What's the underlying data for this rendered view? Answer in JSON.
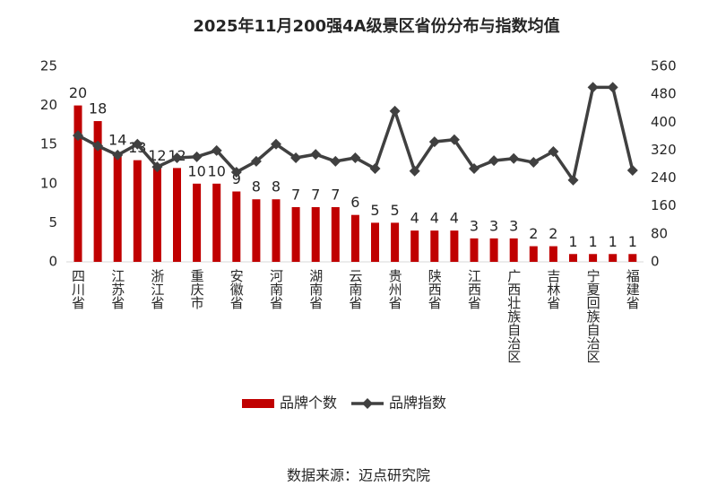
{
  "chart_data": {
    "type": "bar_line",
    "title": "2025年11月200强4A级景区省份分布与指数均值",
    "categories": [
      "四川省",
      null,
      "江苏省",
      null,
      "浙江省",
      null,
      "重庆市",
      null,
      "安徽省",
      null,
      "河南省",
      null,
      "湖南省",
      null,
      "云南省",
      null,
      "贵州省",
      null,
      "陕西省",
      null,
      "江西省",
      null,
      "广西壮族自治区",
      null,
      "吉林省",
      null,
      "宁夏回族自治区",
      null,
      "福建省"
    ],
    "series": [
      {
        "name": "品牌个数",
        "color": "#c00000",
        "kind": "bar",
        "values": [
          20,
          18,
          14,
          13,
          12,
          12,
          10,
          10,
          9,
          8,
          8,
          7,
          7,
          7,
          6,
          5,
          5,
          4,
          4,
          4,
          3,
          3,
          3,
          2,
          2,
          1,
          1,
          1,
          1
        ]
      },
      {
        "name": "品牌指数",
        "color": "#404040",
        "kind": "line",
        "axis": "y2",
        "values": [
          362,
          332,
          306,
          337,
          272,
          298,
          301,
          319,
          257,
          288,
          337,
          298,
          308,
          288,
          298,
          267,
          432,
          260,
          344,
          350,
          267,
          290,
          296,
          285,
          316,
          234,
          500,
          500,
          262
        ]
      }
    ],
    "ylim": [
      0,
      25
    ],
    "yticks": [
      0,
      5,
      10,
      15,
      20,
      25
    ],
    "y2lim": [
      0,
      560
    ],
    "y2ticks": [
      0,
      80,
      160,
      240,
      320,
      400,
      480,
      560
    ],
    "legend": "bottom",
    "source": "数据来源：迈点研究院"
  }
}
